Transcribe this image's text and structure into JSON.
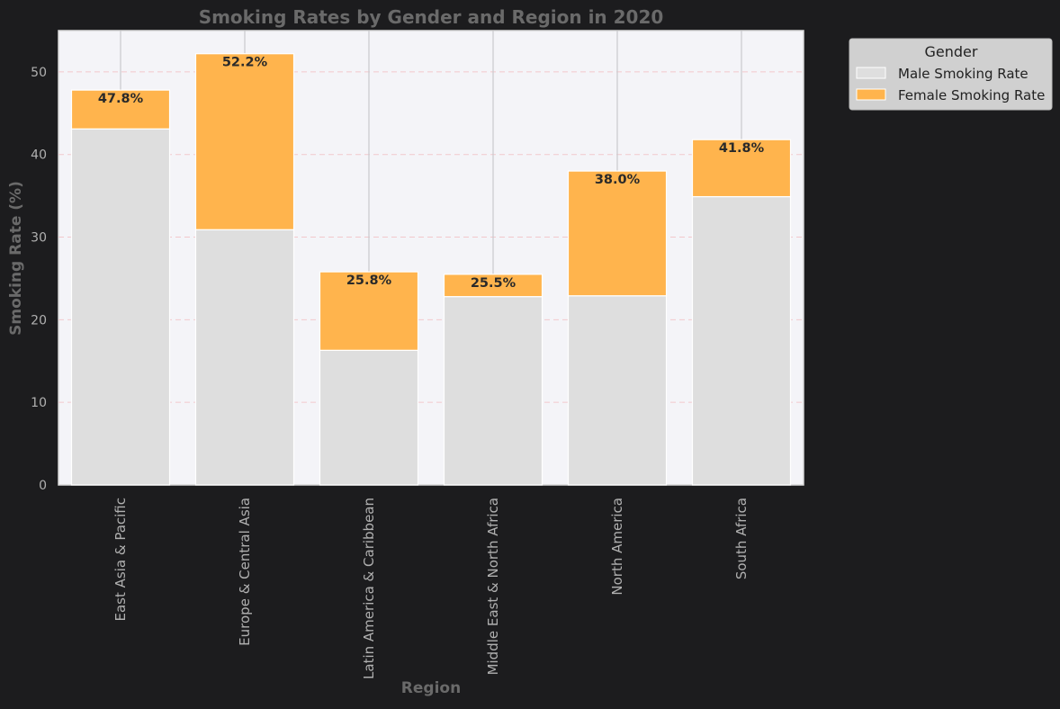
{
  "chart_data": {
    "type": "bar",
    "stacked": true,
    "title": "Smoking Rates by Gender and Region in 2020",
    "xlabel": "Region",
    "ylabel": "Smoking Rate (%)",
    "ylim": [
      0,
      55
    ],
    "yticks": [
      "0",
      "10",
      "20",
      "30",
      "40",
      "50"
    ],
    "categories": [
      "East Asia & Pacific",
      "Europe & Central Asia",
      "Latin America & Caribbean",
      "Middle East & North Africa",
      "North America",
      "South Africa"
    ],
    "series": [
      {
        "name": "Male Smoking Rate",
        "color": "#dedede",
        "values": [
          43.1,
          30.9,
          16.3,
          22.8,
          22.9,
          34.9
        ]
      },
      {
        "name": "Female Smoking Rate",
        "color": "#ffb44d",
        "values": [
          4.7,
          21.3,
          9.5,
          2.7,
          15.1,
          6.9
        ]
      }
    ],
    "data_labels": [
      "47.8%",
      "52.2%",
      "25.8%",
      "25.5%",
      "38.0%",
      "41.8%"
    ],
    "legend": {
      "title": "Gender",
      "position": "upper-right-outside"
    },
    "grid": {
      "y": true,
      "style": "dashed"
    }
  }
}
